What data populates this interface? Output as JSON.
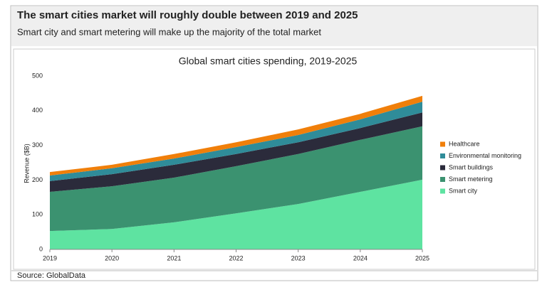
{
  "header": {
    "title": "The smart cities market will roughly double between 2019 and 2025",
    "subtitle": "Smart city and smart metering will make up the majority of the total market"
  },
  "source": "Source: GlobalData",
  "chart_data": {
    "type": "area",
    "stacked": true,
    "title": "Global smart cities spending, 2019-2025",
    "y_label": "Revenue ($B)",
    "categories": [
      "2019",
      "2020",
      "2021",
      "2022",
      "2023",
      "2024",
      "2025"
    ],
    "ylim": [
      0,
      500
    ],
    "yticks": [
      0,
      100,
      200,
      300,
      400,
      500
    ],
    "grid": false,
    "legend": "right",
    "series": [
      {
        "name": "Smart city",
        "color": "#5ee3a1",
        "values": [
          53,
          59,
          78,
          104,
          131,
          166,
          201
        ]
      },
      {
        "name": "Smart metering",
        "color": "#3b9270",
        "values": [
          113,
          123,
          129,
          136,
          144,
          150,
          154
        ]
      },
      {
        "name": "Smart buildings",
        "color": "#2b2b3b",
        "values": [
          31,
          35,
          37,
          35,
          34,
          34,
          40
        ]
      },
      {
        "name": "Environmental monitoring",
        "color": "#2f8c99",
        "values": [
          16,
          17,
          18,
          20,
          21,
          25,
          31
        ]
      },
      {
        "name": "Healthcare",
        "color": "#f07f0a",
        "values": [
          10,
          10,
          13,
          14,
          16,
          16,
          17
        ]
      }
    ]
  }
}
